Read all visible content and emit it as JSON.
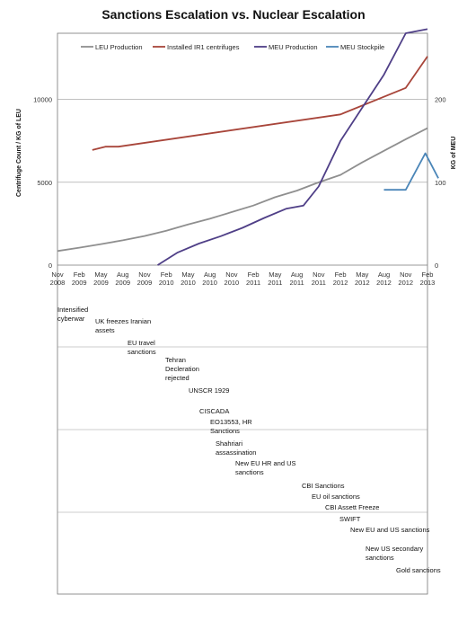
{
  "chart_data": {
    "type": "line",
    "title": "Sanctions Escalation vs. Nuclear Escalation",
    "y_left_label": "Centrifuge Count / KG of LEU",
    "y_right_label": "KG of MEU",
    "y_left_ticks": [
      "0",
      "5000",
      "10000"
    ],
    "y_right_ticks": [
      "0",
      "100",
      "200"
    ],
    "ylim_left": [
      0,
      14000
    ],
    "ylim_right": [
      0,
      280
    ],
    "x_ticks": [
      [
        "Nov",
        "2008"
      ],
      [
        "Feb",
        "2009"
      ],
      [
        "May",
        "2009"
      ],
      [
        "Aug",
        "2009"
      ],
      [
        "Nov",
        "2009"
      ],
      [
        "Feb",
        "2010"
      ],
      [
        "May",
        "2010"
      ],
      [
        "Aug",
        "2010"
      ],
      [
        "Nov",
        "2010"
      ],
      [
        "Feb",
        "2011"
      ],
      [
        "May",
        "2011"
      ],
      [
        "Aug",
        "2011"
      ],
      [
        "Nov",
        "2011"
      ],
      [
        "Feb",
        "2012"
      ],
      [
        "May",
        "2012"
      ],
      [
        "Aug",
        "2012"
      ],
      [
        "Nov",
        "2012"
      ],
      [
        "Feb",
        "2013"
      ]
    ],
    "grid": true,
    "legend_position": "top",
    "series": [
      {
        "name": "LEU Production",
        "axis": "left",
        "color": "#8f8f8f",
        "x": [
          0,
          1,
          2,
          3,
          4,
          5,
          6,
          7,
          7.5,
          8,
          9,
          10,
          11,
          12,
          13,
          14,
          15,
          16,
          17
        ],
        "values": [
          850,
          1050,
          1270,
          1500,
          1760,
          2080,
          2450,
          2800,
          3000,
          3200,
          3600,
          4100,
          4500,
          5000,
          5450,
          6200,
          6900,
          7600,
          8270
        ]
      },
      {
        "name": "Installed IR1 centrifuges",
        "axis": "left",
        "color": "#a8453a",
        "x": [
          1.6,
          2.2,
          2.8,
          13,
          16,
          17
        ],
        "values": [
          6950,
          7150,
          7150,
          9100,
          10700,
          12600
        ]
      },
      {
        "name": "MEU Production",
        "axis": "right",
        "color": "#4f3f87",
        "x": [
          4.6,
          5.5,
          6.5,
          7.5,
          8.5,
          9.5,
          10.5,
          11.3,
          12,
          13,
          14,
          15,
          16,
          17
        ],
        "values": [
          0,
          15,
          26,
          35,
          45,
          57,
          68,
          72,
          95,
          150,
          190,
          230,
          280,
          285
        ]
      },
      {
        "name": "MEU Stockpile",
        "axis": "right",
        "color": "#4b86b8",
        "x": [
          15,
          16,
          16.9,
          17.5
        ],
        "values": [
          91,
          91,
          135,
          105
        ]
      }
    ]
  },
  "events": [
    "Intensified cyberwar",
    "UK freezes Iranian assets",
    "EU travel sanctions",
    "Tehran Decleration rejected",
    "UNSCR 1929",
    "CISCADA",
    "EO13553, HR Sanctions",
    "Shahriari assassination",
    "New EU HR and US sanctions",
    "CBI Sanctions",
    "EU oil sanctions",
    "CBI Assett Freeze",
    "SWIFT",
    "New EU and US sanctions",
    "New US secondary sanctions",
    "Gold sanctions"
  ]
}
